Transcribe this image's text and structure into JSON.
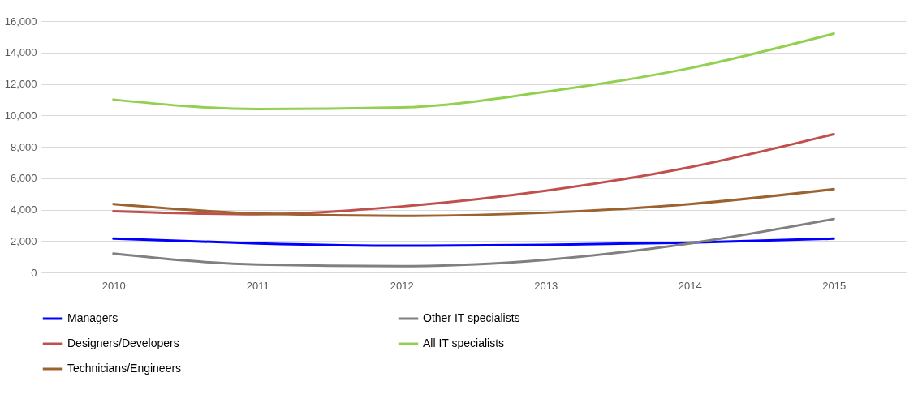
{
  "chart_data": {
    "type": "line",
    "categories": [
      "2010",
      "2011",
      "2012",
      "2013",
      "2014",
      "2015"
    ],
    "series": [
      {
        "name": "Managers",
        "color": "#0000ff",
        "values": [
          2150,
          1850,
          1700,
          1750,
          1900,
          2150
        ]
      },
      {
        "name": "Other IT specialists",
        "color": "#808080",
        "values": [
          1200,
          500,
          400,
          800,
          1850,
          3400
        ]
      },
      {
        "name": "Designers/Developers",
        "color": "#c0504d",
        "values": [
          3900,
          3700,
          4200,
          5200,
          6700,
          8800
        ]
      },
      {
        "name": "All IT specialists",
        "color": "#92d050",
        "values": [
          11000,
          10400,
          10500,
          11500,
          13000,
          15200
        ]
      },
      {
        "name": "Technicians/Engineers",
        "color": "#9c6230",
        "values": [
          4350,
          3750,
          3600,
          3800,
          4350,
          5300
        ]
      }
    ],
    "ylim": [
      0,
      16000
    ],
    "yticks": [
      {
        "value": 0,
        "label": "0"
      },
      {
        "value": 2000,
        "label": "2,000"
      },
      {
        "value": 4000,
        "label": "4,000"
      },
      {
        "value": 6000,
        "label": "6,000"
      },
      {
        "value": 8000,
        "label": "8,000"
      },
      {
        "value": 10000,
        "label": "10,000"
      },
      {
        "value": 12000,
        "label": "12,000"
      },
      {
        "value": 14000,
        "label": "14,000"
      },
      {
        "value": 16000,
        "label": "16,000"
      }
    ],
    "grid": "y",
    "legend": "bottom",
    "marker": "none",
    "line_style": "solid"
  }
}
